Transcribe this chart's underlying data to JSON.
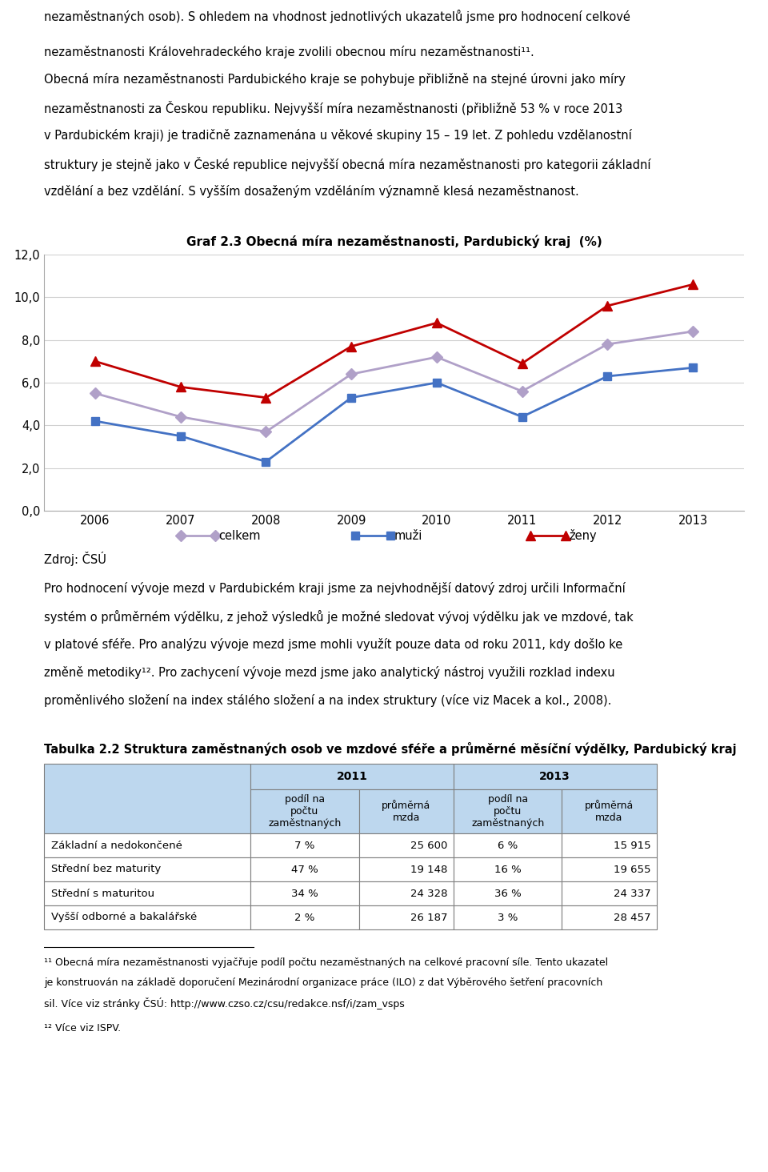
{
  "page_bg": "#ffffff",
  "text_color": "#000000",
  "para1_line1": "nezaměstnaných osob). S ohledem na vhodnost jednotlivých ukazatelů jsme pro hodnocení celkové",
  "para1_line2": "nezaměstnanosti Královehradeckého kraje zvolili obecnou míru nezaměstnanosti¹¹.",
  "para2_lines": [
    "Obecná míra nezaměstnanosti Pardubického kraje se pohybuje přibližně na stejné úrovni jako míry",
    "nezaměstnanosti za Českou republiku. Nejvyšší míra nezaměstnanosti (přibližně 53 % v roce 2013",
    "v Pardubickém kraji) je tradičně zaznamenána u věkové skupiny 15 – 19 let. Z pohledu vzdělanostní",
    "struktury je stejně jako v České republice nejvyšší obecná míra nezaměstnanosti pro kategorii základní",
    "vzdělání a bez vzdělání. S vyšším dosaženým vzděláním významně klesá nezaměstnanost."
  ],
  "chart_title": "Graf 2.3 Obecná míra nezaměstnanosti, Pardubický kraj  (%)",
  "years": [
    2006,
    2007,
    2008,
    2009,
    2010,
    2011,
    2012,
    2013
  ],
  "celkem": [
    5.5,
    4.4,
    3.7,
    6.4,
    7.2,
    5.6,
    7.8,
    8.4
  ],
  "muzi": [
    4.2,
    3.5,
    2.3,
    5.3,
    6.0,
    4.4,
    6.3,
    6.7
  ],
  "zeny": [
    7.0,
    5.8,
    5.3,
    7.7,
    8.8,
    6.9,
    9.6,
    10.6
  ],
  "celkem_color": "#b0a0c8",
  "muzi_color": "#4472c4",
  "zeny_color": "#c00000",
  "ylim": [
    0.0,
    12.0
  ],
  "yticks": [
    0.0,
    2.0,
    4.0,
    6.0,
    8.0,
    10.0,
    12.0
  ],
  "source": "Zdroj: ČSÚ",
  "para3_lines": [
    "Pro hodnocení vývoje mezd v Pardubickém kraji jsme za nejvhodnější datový zdroj určili Informační",
    "systém o průměrném výdělku, z jehož výsledků je možné sledovat vývoj výdělku jak ve mzdové, tak",
    "v platové sféře. Pro analýzu vývoje mezd jsme mohli využít pouze data od roku 2011, kdy došlo ke",
    "změně metodiky¹². Pro zachycení vývoje mezd jsme jako analytický nástroj využili rozklad indexu",
    "proměnlivého složení na index stálého složení a na index struktury (více viz Macek a kol., 2008)."
  ],
  "table_title": "Tabulka 2.2 Struktura zaměstnaných osob ve mzdové sféře a průměrné měsíční výdělky, Pardubický kraj",
  "table_header_bg": "#bdd7ee",
  "table_row_bg": "#ffffff",
  "table_border_color": "#7f7f7f",
  "table_rows": [
    [
      "Základní a nedokončené",
      "7 %",
      "25 600",
      "6 %",
      "15 915"
    ],
    [
      "Střední bez maturity",
      "47 %",
      "19 148",
      "16 %",
      "19 655"
    ],
    [
      "Střední s maturitou",
      "34 %",
      "24 328",
      "36 %",
      "24 337"
    ],
    [
      "Vyšší odborné a bakalářské",
      "2 %",
      "26 187",
      "3 %",
      "28 457"
    ]
  ],
  "footnote_line": "___________________________",
  "footnote1_lines": [
    "¹¹ Obecná míra nezaměstnanosti vyjačřuje podíl počtu nezaměstnaných na celkové pracovní síle. Tento ukazatel",
    "je konstruován na základě doporučení Mezinárodní organizace práce (ILO) z dat Výběrového šetření pracovních",
    "sil. Více viz stránky ČSÚ: http://www.czso.cz/csu/redakce.nsf/i/zam_vsps"
  ],
  "footnote2": "¹² Více viz ISPV."
}
